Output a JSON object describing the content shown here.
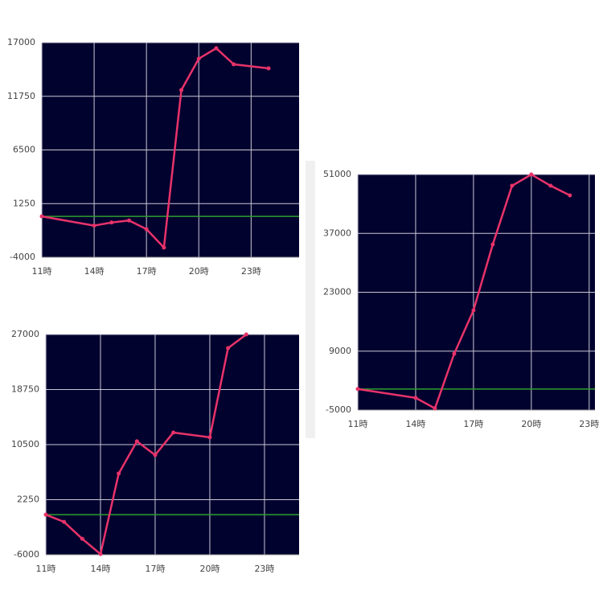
{
  "chart_data": [
    {
      "type": "line",
      "color": "#e8336a",
      "reference_line": 0,
      "reference_color": "#2e9e2e",
      "x": [
        11,
        14,
        15,
        16,
        17,
        18,
        19,
        20,
        21,
        22,
        24
      ],
      "values": [
        0,
        -900,
        -600,
        -400,
        -1250,
        -3050,
        12360,
        15430,
        16450,
        14880,
        14480
      ],
      "xlim": [
        11,
        25.75
      ],
      "ylim": [
        -4000,
        17000
      ],
      "xticks": [
        {
          "value": 11,
          "label": "11時"
        },
        {
          "value": 14,
          "label": "14時"
        },
        {
          "value": 17,
          "label": "17時"
        },
        {
          "value": 20,
          "label": "20時"
        },
        {
          "value": 23,
          "label": "23時"
        }
      ],
      "yticks": [
        -4000,
        1250,
        6500,
        11750,
        17000
      ],
      "grid": true
    },
    {
      "type": "line",
      "color": "#e8336a",
      "reference_line": 0,
      "reference_color": "#2e9e2e",
      "x": [
        11,
        12,
        13,
        14,
        15,
        16,
        17,
        18,
        20,
        21,
        22
      ],
      "values": [
        0,
        -1080,
        -3610,
        -5900,
        6170,
        10990,
        8940,
        12310,
        11590,
        24950,
        27000
      ],
      "xlim": [
        11,
        24.9
      ],
      "ylim": [
        -6000,
        27000
      ],
      "xticks": [
        {
          "value": 11,
          "label": "11時"
        },
        {
          "value": 14,
          "label": "14時"
        },
        {
          "value": 17,
          "label": "17時"
        },
        {
          "value": 20,
          "label": "20時"
        },
        {
          "value": 23,
          "label": "23時"
        }
      ],
      "yticks": [
        -6000,
        2250,
        10500,
        18750,
        27000
      ],
      "grid": true
    },
    {
      "type": "line",
      "color": "#e8336a",
      "reference_line": 0,
      "reference_color": "#2e9e2e",
      "x": [
        11,
        14,
        15,
        16,
        17,
        18,
        19,
        20,
        21,
        22
      ],
      "values": [
        0,
        -2100,
        -4600,
        8380,
        18700,
        34370,
        48320,
        51000,
        48320,
        46030
      ],
      "xlim": [
        11,
        23.3
      ],
      "ylim": [
        -5000,
        51000
      ],
      "xticks": [
        {
          "value": 11,
          "label": "11時"
        },
        {
          "value": 14,
          "label": "14時"
        },
        {
          "value": 17,
          "label": "17時"
        },
        {
          "value": 20,
          "label": "20時"
        },
        {
          "value": 23,
          "label": "23時"
        }
      ],
      "yticks": [
        -5000,
        9000,
        23000,
        37000,
        51000
      ],
      "grid": true
    }
  ]
}
